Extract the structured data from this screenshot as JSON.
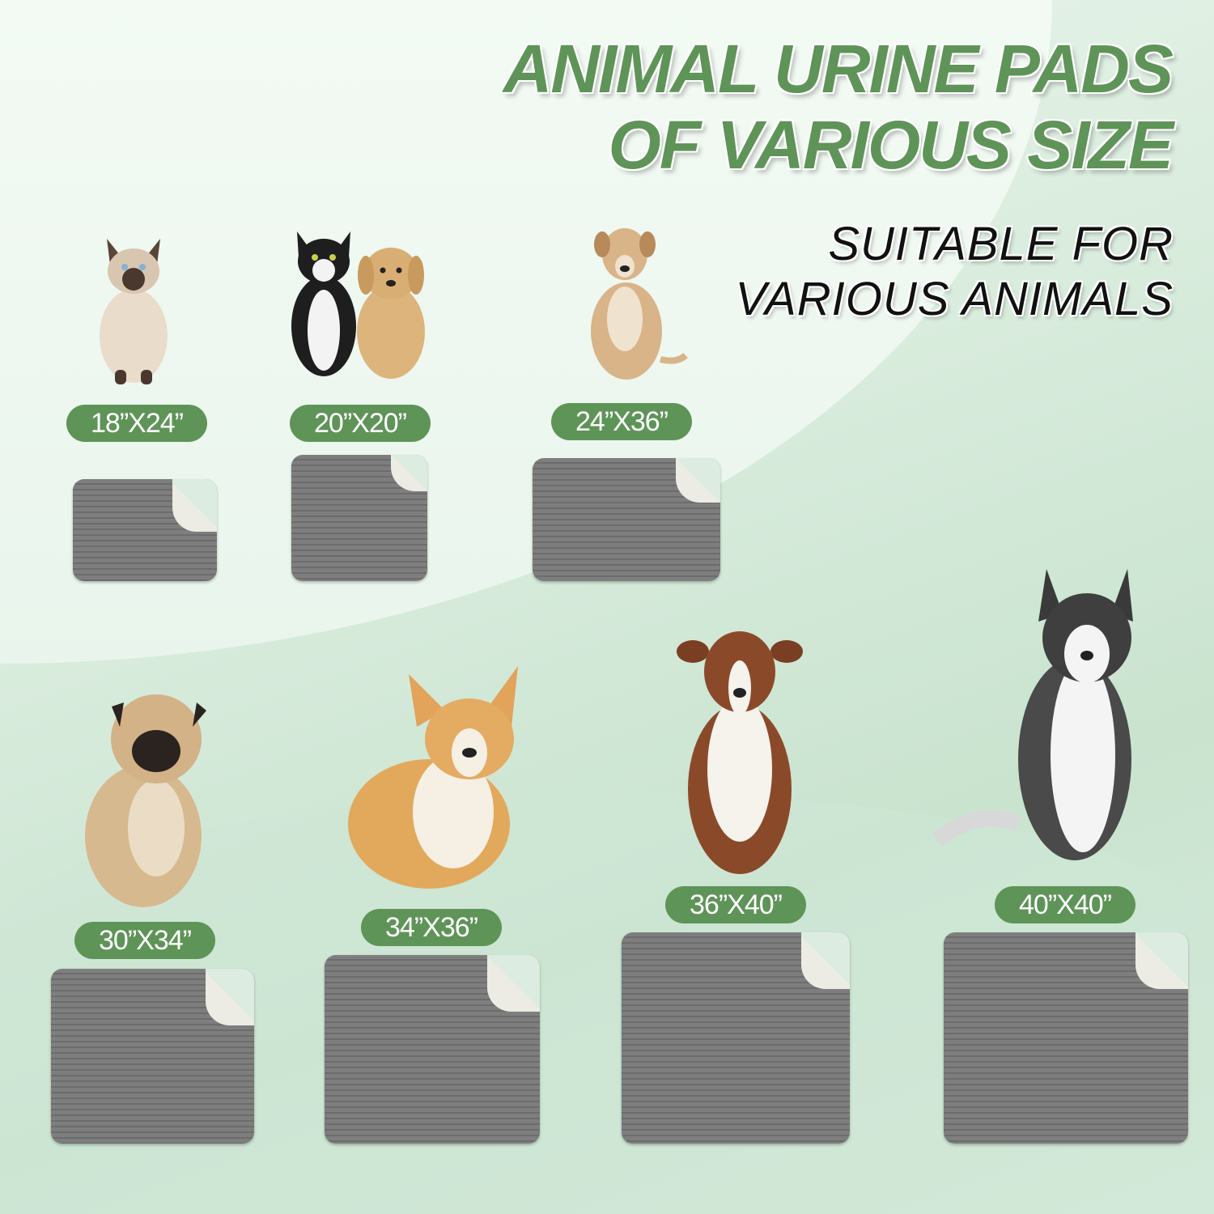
{
  "title": {
    "line1": "ANIMAL URINE PADS",
    "line2": "OF VARIOUS SIZE"
  },
  "subtitle": {
    "line1": "SUITABLE FOR",
    "line2": "VARIOUS ANIMALS"
  },
  "colors": {
    "accent_green": "#5e9457",
    "pad_gray": "#7a7a7a",
    "pad_back": "#ecebe4"
  },
  "items": [
    {
      "size": "18”X24”",
      "animal": "siamese-cat"
    },
    {
      "size": "20”X20”",
      "animal": "cat-and-puppy"
    },
    {
      "size": "24”X36”",
      "animal": "tan-dog"
    },
    {
      "size": "30”X34”",
      "animal": "pug"
    },
    {
      "size": "34”X36”",
      "animal": "corgi"
    },
    {
      "size": "36”X40”",
      "animal": "australian-shepherd"
    },
    {
      "size": "40”X40”",
      "animal": "husky"
    }
  ]
}
